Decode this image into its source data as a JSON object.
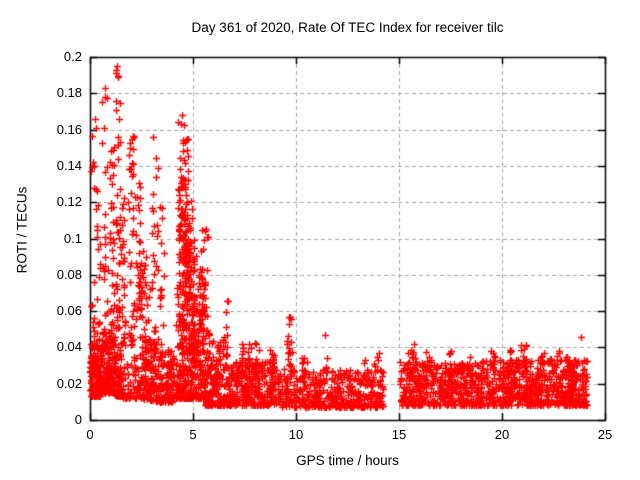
{
  "meta": {
    "year": "2020",
    "day_of_year": "361",
    "receiver": "tilc"
  },
  "chart_data": {
    "type": "scatter",
    "title": "Day 361 of 2020, Rate Of TEC Index for receiver tilc",
    "xlabel": "GPS time / hours",
    "ylabel": "ROTI / TECUs",
    "xlim": [
      0,
      25
    ],
    "ylim": [
      0,
      0.2
    ],
    "xticks": [
      0,
      5,
      10,
      15,
      20,
      25
    ],
    "xtick_labels": [
      "0",
      "5",
      "10",
      "15",
      "20",
      "25"
    ],
    "yticks": [
      0,
      0.02,
      0.04,
      0.06,
      0.08,
      0.1,
      0.12,
      0.14,
      0.16,
      0.18,
      0.2
    ],
    "ytick_labels": [
      "0",
      "0.02",
      "0.04",
      "0.06",
      "0.08",
      "0.1",
      "0.12",
      "0.14",
      "0.16",
      "0.18",
      "0.2"
    ],
    "grid": {
      "show": true,
      "style": "dashed",
      "color": "#a8a8a8"
    },
    "legend": {
      "show": false
    },
    "axis_color": "#000000",
    "background": "#ffffff",
    "marker": {
      "shape": "plus",
      "color": "#ff0000",
      "size": 7,
      "stroke": 1.4
    },
    "data_gaps": [
      [
        14.25,
        15.05
      ]
    ],
    "seed": 20201226,
    "notable_points": [
      [
        1.33,
        0.195
      ],
      [
        1.36,
        0.189
      ],
      [
        0.72,
        0.183
      ],
      [
        0.74,
        0.178
      ],
      [
        0.57,
        0.175
      ],
      [
        0.25,
        0.166
      ],
      [
        0.27,
        0.161
      ],
      [
        4.45,
        0.168
      ],
      [
        4.42,
        0.163
      ],
      [
        3.07,
        0.156
      ],
      [
        2.02,
        0.155
      ],
      [
        4.66,
        0.154
      ],
      [
        2.9,
        0.072
      ],
      [
        5.63,
        0.105
      ],
      [
        6.7,
        0.0655
      ],
      [
        9.65,
        0.0565
      ],
      [
        11.4,
        0.047
      ],
      [
        23.85,
        0.0457
      ]
    ],
    "point_clusters": [
      {
        "x0": 0.0,
        "x1": 0.55,
        "n": 150,
        "y0": 0.013,
        "y1": 0.042,
        "k": 1.8
      },
      {
        "x0": 0.55,
        "x1": 1.2,
        "n": 150,
        "y0": 0.015,
        "y1": 0.05,
        "k": 1.6
      },
      {
        "x0": 1.2,
        "x1": 1.55,
        "n": 60,
        "y0": 0.013,
        "y1": 0.04,
        "k": 1.6
      },
      {
        "x0": 1.55,
        "x1": 2.1,
        "n": 28,
        "y0": 0.012,
        "y1": 0.035,
        "k": 1.6
      },
      {
        "x0": 2.1,
        "x1": 2.55,
        "n": 40,
        "y0": 0.012,
        "y1": 0.04,
        "k": 1.6
      },
      {
        "x0": 2.55,
        "x1": 3.15,
        "n": 90,
        "y0": 0.011,
        "y1": 0.045,
        "k": 1.5
      },
      {
        "x0": 3.15,
        "x1": 4.15,
        "n": 130,
        "y0": 0.01,
        "y1": 0.04,
        "k": 1.8
      },
      {
        "x0": 4.15,
        "x1": 5.6,
        "n": 280,
        "y0": 0.012,
        "y1": 0.08,
        "k": 2.2
      },
      {
        "x0": 5.6,
        "x1": 9.0,
        "n": 420,
        "y0": 0.008,
        "y1": 0.032,
        "k": 1.6
      },
      {
        "x0": 9.0,
        "x1": 14.25,
        "n": 430,
        "y0": 0.007,
        "y1": 0.028,
        "k": 1.6
      },
      {
        "x0": 15.05,
        "x1": 19.0,
        "n": 400,
        "y0": 0.008,
        "y1": 0.032,
        "k": 1.6
      },
      {
        "x0": 19.0,
        "x1": 24.15,
        "n": 540,
        "y0": 0.008,
        "y1": 0.034,
        "k": 1.6
      },
      {
        "x0": 0.05,
        "x1": 0.25,
        "n": 20,
        "y0": 0.03,
        "y1": 0.16,
        "k": 1.6
      },
      {
        "x0": 0.3,
        "x1": 0.5,
        "n": 20,
        "y0": 0.04,
        "y1": 0.142,
        "k": 1.4
      },
      {
        "x0": 0.6,
        "x1": 0.85,
        "n": 22,
        "y0": 0.04,
        "y1": 0.184,
        "k": 1.5
      },
      {
        "x0": 0.95,
        "x1": 1.2,
        "n": 35,
        "y0": 0.04,
        "y1": 0.155,
        "k": 1.3
      },
      {
        "x0": 1.25,
        "x1": 1.45,
        "n": 42,
        "y0": 0.05,
        "y1": 0.193,
        "k": 1.4
      },
      {
        "x0": 1.5,
        "x1": 1.7,
        "n": 28,
        "y0": 0.04,
        "y1": 0.132,
        "k": 1.3
      },
      {
        "x0": 1.85,
        "x1": 2.15,
        "n": 38,
        "y0": 0.04,
        "y1": 0.157,
        "k": 1.4
      },
      {
        "x0": 2.2,
        "x1": 2.55,
        "n": 28,
        "y0": 0.04,
        "y1": 0.132,
        "k": 1.3
      },
      {
        "x0": 2.35,
        "x1": 2.6,
        "n": 18,
        "y0": 0.055,
        "y1": 0.095,
        "k": 1.0
      },
      {
        "x0": 2.6,
        "x1": 2.85,
        "n": 18,
        "y0": 0.03,
        "y1": 0.092,
        "k": 1.3
      },
      {
        "x0": 3.0,
        "x1": 3.3,
        "n": 30,
        "y0": 0.03,
        "y1": 0.157,
        "k": 1.6
      },
      {
        "x0": 3.4,
        "x1": 3.6,
        "n": 20,
        "y0": 0.03,
        "y1": 0.122,
        "k": 1.5
      },
      {
        "x0": 4.25,
        "x1": 4.55,
        "n": 45,
        "y0": 0.04,
        "y1": 0.17,
        "k": 1.4
      },
      {
        "x0": 4.3,
        "x1": 4.6,
        "n": 30,
        "y0": 0.08,
        "y1": 0.135,
        "k": 1.0
      },
      {
        "x0": 4.55,
        "x1": 4.8,
        "n": 50,
        "y0": 0.05,
        "y1": 0.155,
        "k": 1.2
      },
      {
        "x0": 4.6,
        "x1": 4.85,
        "n": 25,
        "y0": 0.075,
        "y1": 0.102,
        "k": 1.0
      },
      {
        "x0": 4.8,
        "x1": 5.1,
        "n": 40,
        "y0": 0.03,
        "y1": 0.122,
        "k": 1.4
      },
      {
        "x0": 5.0,
        "x1": 5.45,
        "n": 35,
        "y0": 0.04,
        "y1": 0.095,
        "k": 1.2
      },
      {
        "x0": 5.3,
        "x1": 5.8,
        "n": 30,
        "y0": 0.03,
        "y1": 0.106,
        "k": 1.3
      },
      {
        "x0": 5.75,
        "x1": 6.0,
        "n": 10,
        "y0": 0.03,
        "y1": 0.048,
        "k": 1.2
      },
      {
        "x0": 6.1,
        "x1": 6.35,
        "n": 10,
        "y0": 0.028,
        "y1": 0.046,
        "k": 1.2
      },
      {
        "x0": 6.45,
        "x1": 6.7,
        "n": 14,
        "y0": 0.035,
        "y1": 0.066,
        "k": 1.2
      },
      {
        "x0": 7.3,
        "x1": 7.55,
        "n": 10,
        "y0": 0.026,
        "y1": 0.042,
        "k": 1.2
      },
      {
        "x0": 7.6,
        "x1": 7.85,
        "n": 10,
        "y0": 0.026,
        "y1": 0.042,
        "k": 1.2
      },
      {
        "x0": 7.95,
        "x1": 8.2,
        "n": 8,
        "y0": 0.026,
        "y1": 0.045,
        "k": 1.2
      },
      {
        "x0": 8.7,
        "x1": 8.95,
        "n": 8,
        "y0": 0.026,
        "y1": 0.042,
        "k": 1.2
      },
      {
        "x0": 9.55,
        "x1": 9.8,
        "n": 16,
        "y0": 0.03,
        "y1": 0.057,
        "k": 1.2
      },
      {
        "x0": 10.3,
        "x1": 10.6,
        "n": 8,
        "y0": 0.024,
        "y1": 0.036,
        "k": 1.2
      },
      {
        "x0": 11.3,
        "x1": 11.55,
        "n": 6,
        "y0": 0.024,
        "y1": 0.035,
        "k": 1.2
      },
      {
        "x0": 13.3,
        "x1": 13.55,
        "n": 6,
        "y0": 0.022,
        "y1": 0.033,
        "k": 1.2
      },
      {
        "x0": 13.8,
        "x1": 14.1,
        "n": 6,
        "y0": 0.026,
        "y1": 0.038,
        "k": 1.2
      },
      {
        "x0": 15.45,
        "x1": 15.8,
        "n": 14,
        "y0": 0.026,
        "y1": 0.042,
        "k": 1.2
      },
      {
        "x0": 16.3,
        "x1": 16.6,
        "n": 10,
        "y0": 0.024,
        "y1": 0.038,
        "k": 1.2
      },
      {
        "x0": 17.4,
        "x1": 17.8,
        "n": 12,
        "y0": 0.024,
        "y1": 0.04,
        "k": 1.2
      },
      {
        "x0": 18.3,
        "x1": 18.55,
        "n": 8,
        "y0": 0.024,
        "y1": 0.036,
        "k": 1.2
      },
      {
        "x0": 19.4,
        "x1": 19.7,
        "n": 10,
        "y0": 0.025,
        "y1": 0.039,
        "k": 1.2
      },
      {
        "x0": 20.2,
        "x1": 20.5,
        "n": 12,
        "y0": 0.026,
        "y1": 0.042,
        "k": 1.2
      },
      {
        "x0": 20.9,
        "x1": 21.2,
        "n": 12,
        "y0": 0.026,
        "y1": 0.042,
        "k": 1.2
      },
      {
        "x0": 21.8,
        "x1": 22.1,
        "n": 10,
        "y0": 0.024,
        "y1": 0.038,
        "k": 1.2
      },
      {
        "x0": 22.5,
        "x1": 22.8,
        "n": 10,
        "y0": 0.024,
        "y1": 0.038,
        "k": 1.2
      },
      {
        "x0": 23.1,
        "x1": 23.45,
        "n": 12,
        "y0": 0.024,
        "y1": 0.038,
        "k": 1.2
      }
    ]
  }
}
